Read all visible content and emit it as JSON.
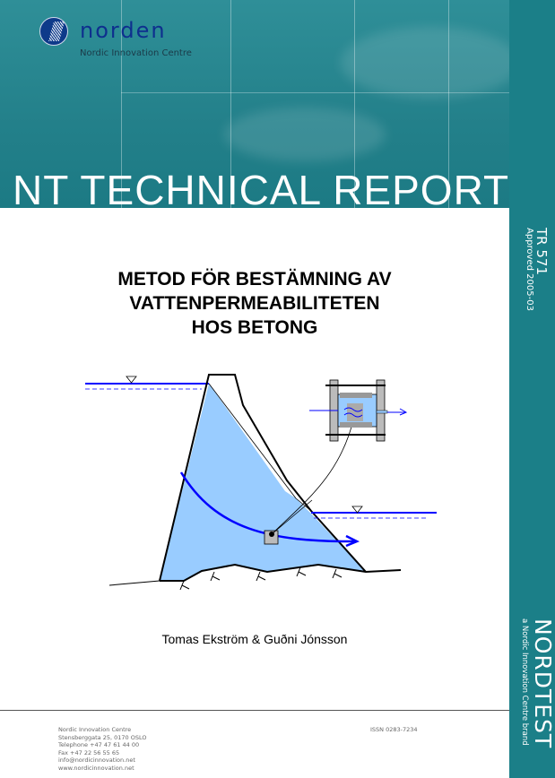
{
  "header": {
    "logo_word": "norden",
    "logo_subtitle": "Nordic Innovation Centre",
    "report_type": "NT TECHNICAL REPORT"
  },
  "side_strip": {
    "report_number": "TR 571",
    "approved": "Approved 2005-03",
    "brand": "NORDTEST",
    "brand_tagline": "a Nordic Innovation Centre brand"
  },
  "title_lines": [
    "METOD FÖR BESTÄMNING AV",
    "VATTENPERMEABILITETEN",
    "HOS BETONG"
  ],
  "authors": "Tomas Ekström & Guðni Jónsson",
  "footer": {
    "org": "Nordic Innovation Centre",
    "address": "Stensberggata 25, 0170 OSLO",
    "telephone": "Telephone +47 47 61 44 00",
    "fax": "Fax +47 22 56 55 65",
    "email": "info@nordicinnovation.net",
    "web": "www.nordicinnovation.net",
    "issn": "ISSN 0283-7234"
  },
  "colors": {
    "teal": "#1b7f88",
    "water_blue": "#0000ff",
    "dam_fill": "#99ccff"
  }
}
